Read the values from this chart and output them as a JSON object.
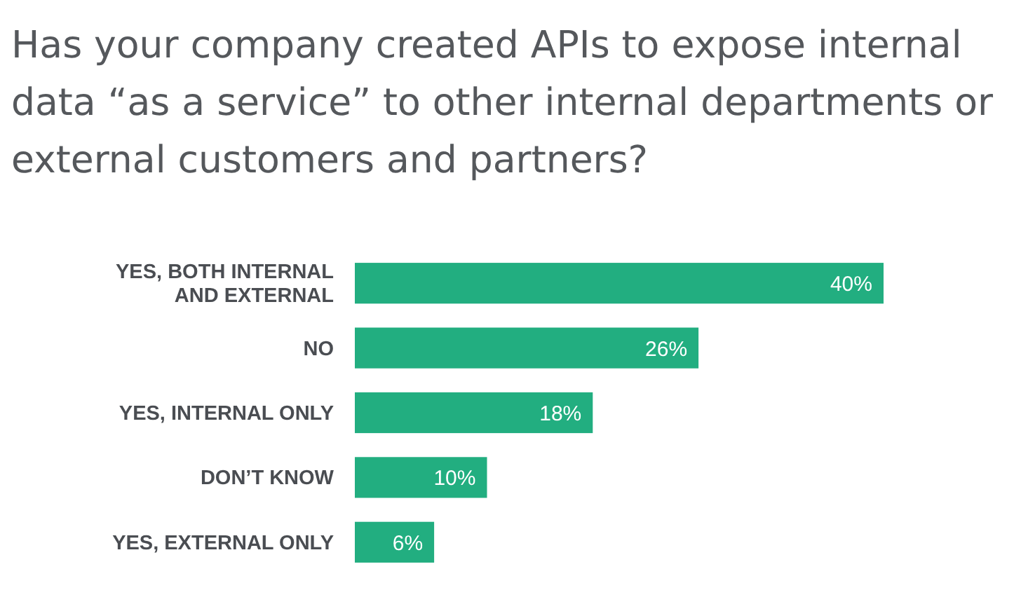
{
  "chart_data": {
    "type": "bar",
    "orientation": "horizontal",
    "title": "Has your company created APIs to expose internal data “as a service” to other internal departments or external customers and partners?",
    "categories": [
      "YES, BOTH INTERNAL AND EXTERNAL",
      "NO",
      "YES, INTERNAL ONLY",
      "DON’T KNOW",
      "YES, EXTERNAL ONLY"
    ],
    "values": [
      40,
      26,
      18,
      10,
      6
    ],
    "value_labels": [
      "40%",
      "26%",
      "18%",
      "10%",
      "6%"
    ],
    "color": "#22ae80"
  }
}
